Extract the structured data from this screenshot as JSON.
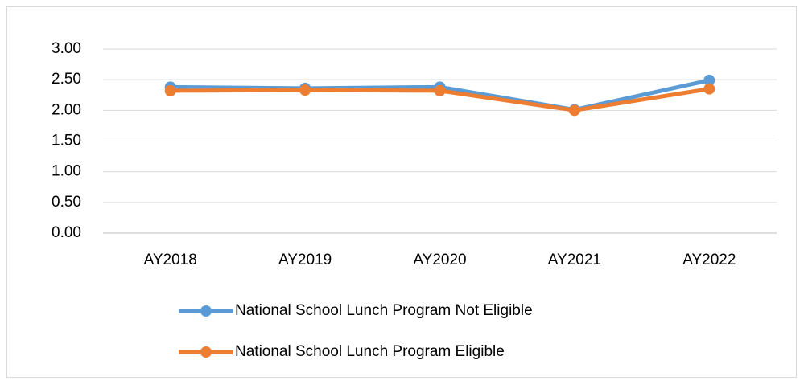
{
  "chart_data": {
    "type": "line",
    "categories": [
      "AY2018",
      "AY2019",
      "AY2020",
      "AY2021",
      "AY2022"
    ],
    "series": [
      {
        "name": "National School Lunch Program Not Eligible",
        "color": "#5b9bd5",
        "values": [
          2.38,
          2.36,
          2.38,
          2.01,
          2.49
        ]
      },
      {
        "name": "National School Lunch Program Eligible",
        "color": "#ed7d31",
        "values": [
          2.32,
          2.33,
          2.32,
          2.0,
          2.35
        ]
      }
    ],
    "ylim": [
      0,
      3
    ],
    "yticks": [
      {
        "value": 0,
        "label": "0.00"
      },
      {
        "value": 0.5,
        "label": "0.50"
      },
      {
        "value": 1,
        "label": "1.00"
      },
      {
        "value": 1.5,
        "label": "1.50"
      },
      {
        "value": 2,
        "label": "2.00"
      },
      {
        "value": 2.5,
        "label": "2.50"
      },
      {
        "value": 3,
        "label": "3.00"
      }
    ],
    "grid": true,
    "legend": "bottom"
  }
}
